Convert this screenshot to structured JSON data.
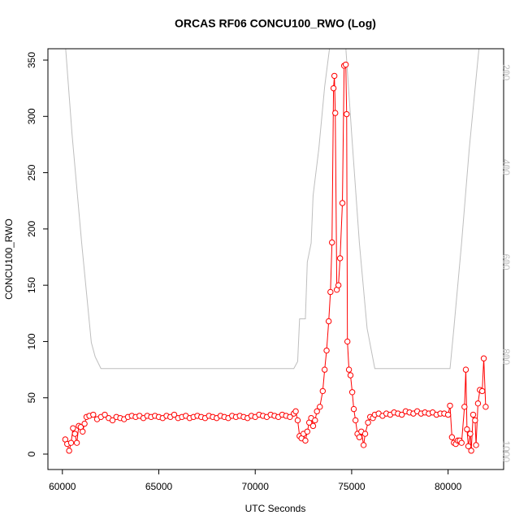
{
  "chart_data": {
    "type": "line",
    "title": "ORCAS RF06 CONCU100_RWO (Log)",
    "x_label": "UTC Seconds",
    "y_label": "CONCU100_RWO",
    "xlim": [
      59250,
      82880
    ],
    "ylim": [
      -13.7,
      360.1
    ],
    "y2lim": [
      1038,
      150
    ],
    "xticks": [
      60000,
      65000,
      70000,
      75000,
      80000
    ],
    "yticks": [
      0,
      50,
      100,
      150,
      200,
      250,
      300,
      350
    ],
    "y2ticks": [
      200,
      400,
      600,
      800,
      1000
    ],
    "y2_color": "#bebebe",
    "series": [
      {
        "color": "#bebebe",
        "axis": "y2",
        "markers": false,
        "x": [
          60170,
          60500,
          61000,
          61500,
          61700,
          62000,
          72000,
          72200,
          72300,
          72600,
          72700,
          72900,
          73000,
          73300,
          73600,
          73850,
          74250,
          74700,
          75000,
          75400,
          75800,
          76200,
          80100,
          80300,
          80700,
          81100,
          81600,
          81700
        ],
        "values": [
          150,
          330,
          560,
          770,
          800,
          825,
          825,
          810,
          720,
          720,
          600,
          560,
          460,
          360,
          230,
          150,
          80,
          150,
          330,
          560,
          740,
          825,
          825,
          740,
          560,
          360,
          150,
          120
        ]
      },
      {
        "color": "#ff0000",
        "axis": "y",
        "markers": true,
        "x": [
          60150,
          60250,
          60350,
          60450,
          60550,
          60650,
          60750,
          60850,
          60950,
          61050,
          61150,
          61250,
          61400,
          61600,
          61800,
          62000,
          62200,
          62400,
          62600,
          62800,
          63000,
          63200,
          63400,
          63600,
          63800,
          64000,
          64200,
          64400,
          64600,
          64800,
          65000,
          65200,
          65400,
          65600,
          65800,
          66000,
          66200,
          66400,
          66600,
          66800,
          67000,
          67200,
          67400,
          67600,
          67800,
          68000,
          68200,
          68400,
          68600,
          68800,
          69000,
          69200,
          69400,
          69600,
          69800,
          70000,
          70200,
          70400,
          70600,
          70800,
          71000,
          71200,
          71400,
          71600,
          71800,
          72000,
          72100,
          72200,
          72300,
          72400,
          72500,
          72600,
          72700,
          72800,
          72900,
          73000,
          73100,
          73200,
          73350,
          73500,
          73600,
          73700,
          73810,
          73900,
          73980,
          74060,
          74105,
          74150,
          74230,
          74315,
          74400,
          74520,
          74610,
          74695,
          74740,
          74780,
          74860,
          74940,
          75030,
          75110,
          75200,
          75300,
          75400,
          75500,
          75620,
          75700,
          75850,
          75960,
          76100,
          76200,
          76400,
          76600,
          76800,
          77000,
          77200,
          77400,
          77600,
          77800,
          78000,
          78200,
          78400,
          78600,
          78800,
          79000,
          79200,
          79400,
          79600,
          79800,
          80000,
          80100,
          80200,
          80300,
          80400,
          80500,
          80600,
          80700,
          80850,
          80920,
          80980,
          81050,
          81150,
          81200,
          81300,
          81400,
          81450,
          81550,
          81650,
          81770,
          81850,
          81950
        ],
        "values": [
          13,
          9,
          3,
          10,
          23,
          18,
          10,
          25,
          24,
          20,
          27,
          33,
          34,
          35,
          31,
          33,
          35,
          32,
          30,
          33,
          32,
          31,
          33,
          34,
          33,
          34,
          32,
          34,
          33,
          34,
          33,
          32,
          34,
          33,
          35,
          32,
          33,
          34,
          32,
          33,
          34,
          33,
          32,
          34,
          33,
          32,
          34,
          33,
          32,
          34,
          33,
          34,
          33,
          32,
          34,
          33,
          35,
          34,
          33,
          35,
          34,
          33,
          35,
          34,
          33,
          36,
          38,
          30,
          16,
          14,
          18,
          12,
          20,
          28,
          32,
          25,
          30,
          38,
          42,
          56,
          75,
          92,
          118,
          144,
          188,
          325,
          336,
          303,
          146,
          150,
          174,
          223,
          345,
          346,
          302,
          100,
          75,
          70,
          55,
          40,
          30,
          18,
          15,
          20,
          8,
          18,
          28,
          33,
          32,
          35,
          36,
          34,
          36,
          35,
          37,
          36,
          35,
          38,
          37,
          36,
          38,
          36,
          37,
          36,
          37,
          35,
          36,
          36,
          35,
          43,
          15,
          10,
          9,
          12,
          12,
          10,
          42,
          75,
          22,
          7,
          18,
          3,
          35,
          30,
          8,
          45,
          57,
          56,
          85,
          42
        ]
      }
    ]
  }
}
